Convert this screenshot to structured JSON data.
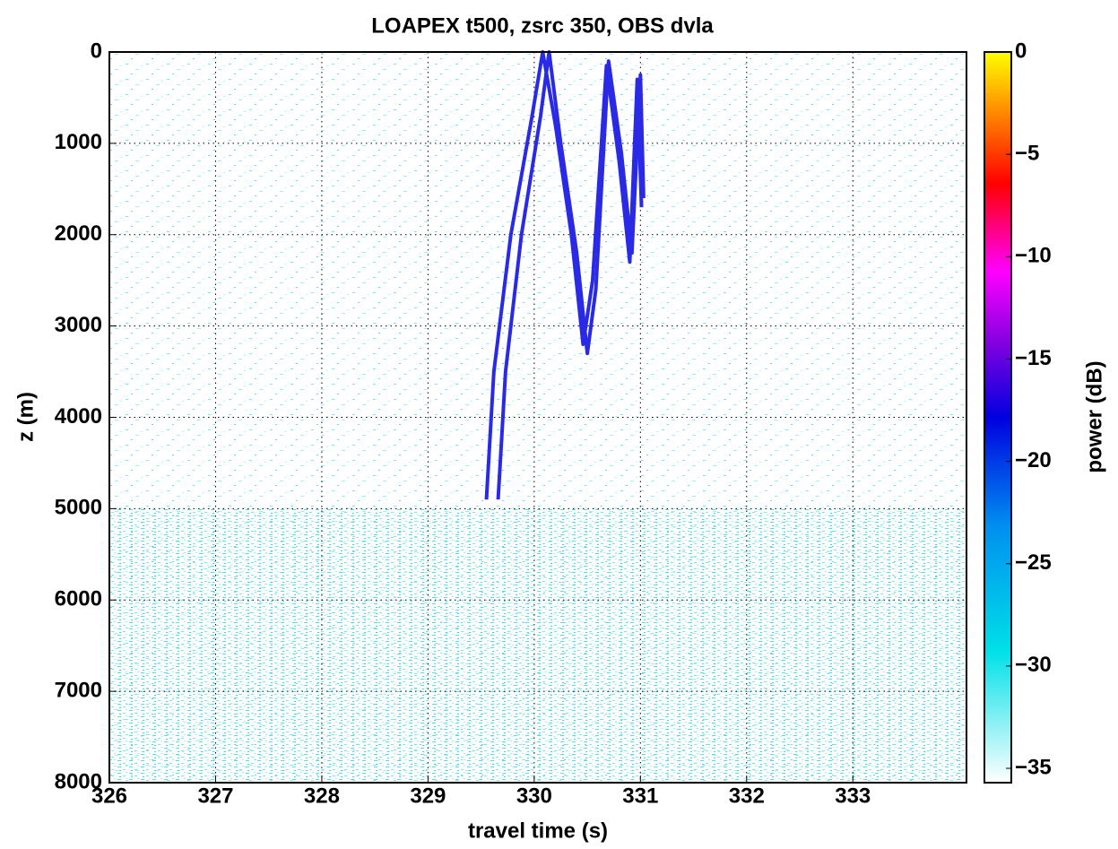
{
  "chart_data": {
    "type": "line",
    "title": "LOAPEX t500,  zsrc 350,  OBS dvla",
    "xlabel": "travel time (s)",
    "ylabel": "z (m)",
    "colorbar_label": "power (dB)",
    "xlim": [
      326,
      334.07
    ],
    "xticks": [
      326,
      327,
      328,
      329,
      330,
      331,
      332,
      333
    ],
    "ylim": [
      0,
      8000
    ],
    "yticks": [
      0,
      1000,
      2000,
      3000,
      4000,
      5000,
      6000,
      7000,
      8000
    ],
    "y_reversed": true,
    "grid": true,
    "clim": [
      -35.7,
      0
    ],
    "cticks": [
      0,
      {
        "value": -5,
        "label": "−5"
      },
      {
        "value": -10,
        "label": "−10"
      },
      {
        "value": -15,
        "label": "−15"
      },
      {
        "value": -20,
        "label": "−20"
      },
      {
        "value": -25,
        "label": "−25"
      },
      {
        "value": -30,
        "label": "−30"
      },
      {
        "value": -35,
        "label": "−35"
      }
    ],
    "series": [
      {
        "color": "#2a2ae6",
        "x": [
          329.55,
          329.62,
          329.78,
          329.98,
          330.08,
          330.2,
          330.35,
          330.46,
          330.55,
          330.68,
          330.8,
          330.9,
          330.97,
          331.01
        ],
        "y": [
          4900,
          3500,
          2000,
          700,
          0,
          800,
          2000,
          3200,
          2500,
          150,
          1200,
          2300,
          300,
          1700
        ]
      },
      {
        "color": "#2a2ae6",
        "x": [
          329.66,
          329.73,
          329.88,
          330.06,
          330.14,
          330.25,
          330.4,
          330.5,
          330.58,
          330.7,
          330.82,
          330.92,
          331.0,
          331.03
        ],
        "y": [
          4900,
          3500,
          2000,
          700,
          0,
          1000,
          2200,
          3300,
          2600,
          100,
          1100,
          2200,
          250,
          1600
        ]
      }
    ]
  }
}
